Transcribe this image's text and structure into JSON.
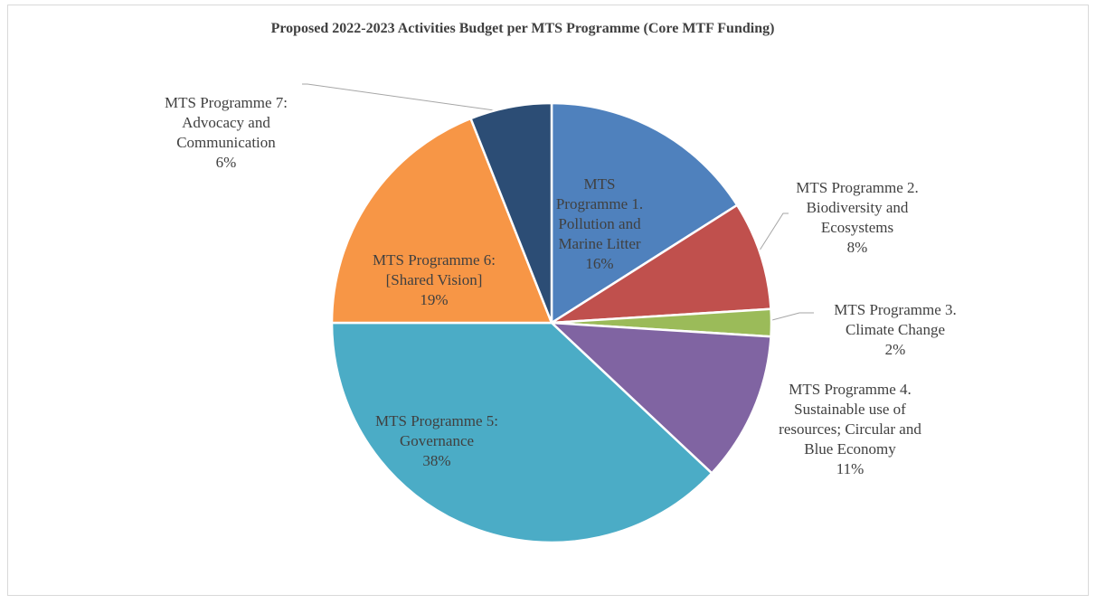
{
  "chart_data": {
    "type": "pie",
    "title": "Proposed 2022-2023 Activities Budget per MTS Programme (Core MTF Funding)",
    "categories": [
      "MTS Programme 1. Pollution and Marine Litter",
      "MTS Programme 2. Biodiversity and Ecosystems",
      "MTS Programme 3. Climate Change",
      "MTS Programme 4. Sustainable use of resources; Circular and Blue Economy",
      "MTS Programme 5: Governance",
      "MTS Programme 6: [Shared Vision]",
      "MTS Programme 7: Advocacy and Communication"
    ],
    "values": [
      16,
      8,
      2,
      11,
      38,
      19,
      6
    ],
    "value_labels": [
      "16%",
      "8%",
      "2%",
      "11%",
      "38%",
      "19%",
      "6%"
    ],
    "colors": [
      "#4f81bd",
      "#c0504d",
      "#9bbb59",
      "#8064a2",
      "#4bacc6",
      "#f79646",
      "#2c4d75"
    ]
  }
}
